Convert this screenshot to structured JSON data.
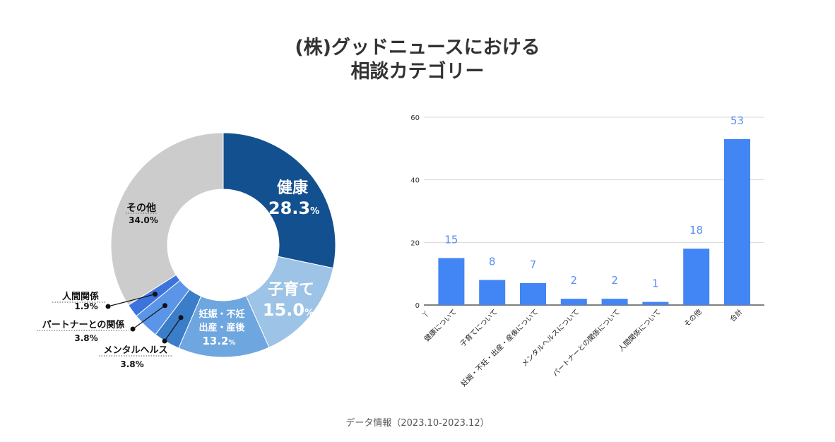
{
  "title": {
    "line1": "(株)グッドニュースにおける",
    "line2": "相談カテゴリー"
  },
  "footer": {
    "note": "データ情報（2023.10-2023.12）"
  },
  "chart_data": [
    {
      "type": "pie",
      "variant": "donut",
      "slices": [
        {
          "name": "健康",
          "value": 28.3,
          "label": "28.3",
          "unit": "%",
          "color": "#13508f"
        },
        {
          "name": "子育て",
          "value": 15.0,
          "label": "15.0",
          "unit": "%",
          "color": "#9dc3e6"
        },
        {
          "name": "妊娠・不妊 出産・産後",
          "name_lines": [
            "妊娠・不妊",
            "出産・産後"
          ],
          "value": 13.2,
          "label": "13.2",
          "unit": "%",
          "color": "#6ea6e0"
        },
        {
          "name": "メンタルヘルス",
          "value": 3.8,
          "label": "3.8%",
          "color": "#3a7dc8"
        },
        {
          "name": "パートナーとの関係",
          "value": 3.8,
          "label": "3.8%",
          "color": "#5b95e8"
        },
        {
          "name": "人間関係",
          "value": 1.9,
          "label": "1.9%",
          "color": "#3d73dd"
        },
        {
          "name": "その他",
          "value": 34.0,
          "label": "34.0%",
          "color": "#cccccc"
        }
      ]
    },
    {
      "type": "bar",
      "categories": [
        "健康について",
        "子育てについて",
        "妊娠・不妊・出産・産後について",
        "メンタルヘルスについて",
        "パートナーとの関係について",
        "人間関係について",
        "その他",
        "合計"
      ],
      "values": [
        15,
        8,
        7,
        2,
        2,
        1,
        18,
        53
      ],
      "ylim": [
        0,
        60
      ],
      "yticks": [
        0,
        20,
        40,
        60
      ],
      "stray_tick_label": "丫",
      "bar_color": "#4285f4",
      "label_color": "#5b8def",
      "grid": true,
      "title": "",
      "xlabel": "",
      "ylabel": ""
    }
  ]
}
